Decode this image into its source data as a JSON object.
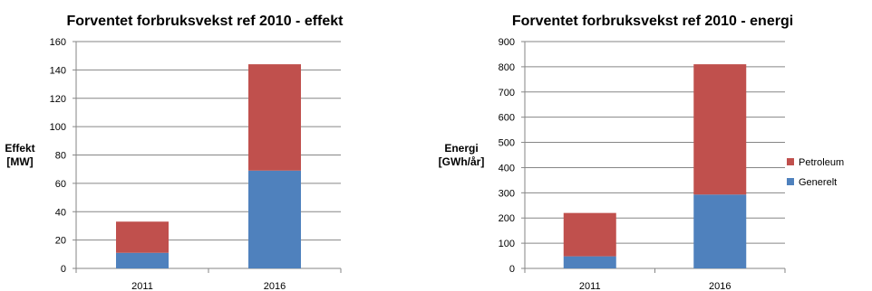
{
  "colors": {
    "Generelt": "#4f81bd",
    "Petroleum": "#c0504d"
  },
  "legend": [
    "Petroleum",
    "Generelt"
  ],
  "chart_data": [
    {
      "type": "bar",
      "stacked": true,
      "title": "Forventet forbruksvekst ref 2010 - effekt",
      "ylabel": [
        "Effekt",
        "[MW]"
      ],
      "categories": [
        "2011",
        "2016"
      ],
      "ylim": [
        0,
        160
      ],
      "yticks": [
        0,
        20,
        40,
        60,
        80,
        100,
        120,
        140,
        160
      ],
      "grid": true,
      "series": [
        {
          "name": "Generelt",
          "values": [
            11,
            69
          ]
        },
        {
          "name": "Petroleum",
          "values": [
            22,
            75
          ]
        }
      ]
    },
    {
      "type": "bar",
      "stacked": true,
      "title": "Forventet forbruksvekst ref 2010 - energi",
      "ylabel": [
        "Energi",
        "[GWh/år]"
      ],
      "categories": [
        "2011",
        "2016"
      ],
      "ylim": [
        0,
        900
      ],
      "yticks": [
        0,
        100,
        200,
        300,
        400,
        500,
        600,
        700,
        800,
        900
      ],
      "grid": true,
      "legend_position": "right",
      "series": [
        {
          "name": "Generelt",
          "values": [
            48,
            293
          ]
        },
        {
          "name": "Petroleum",
          "values": [
            172,
            517
          ]
        }
      ]
    }
  ]
}
